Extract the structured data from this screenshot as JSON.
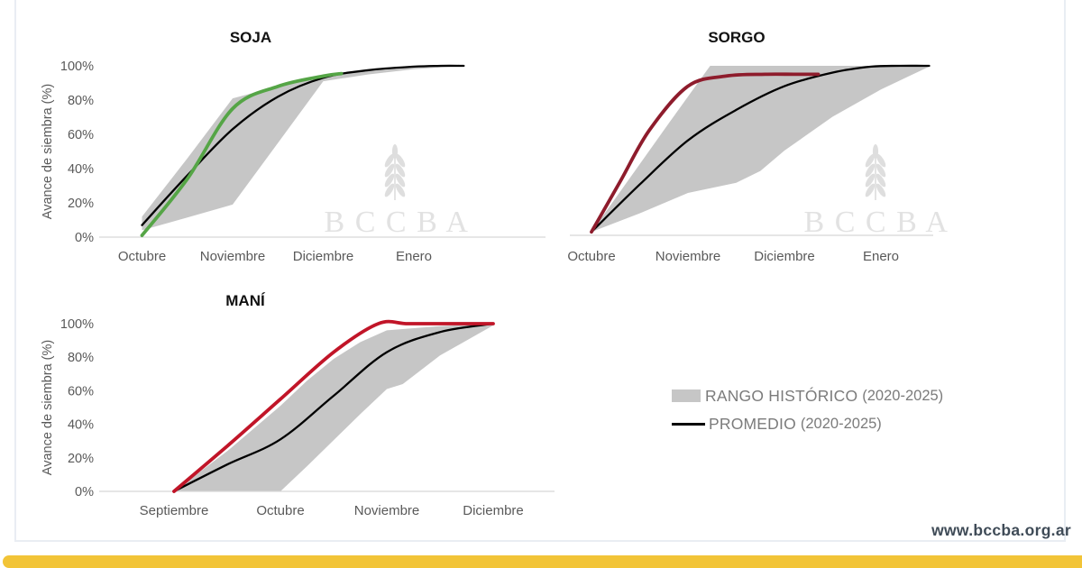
{
  "page": {
    "footer_url": "www.bccba.org.ar",
    "accent_yellow": "#f2c437",
    "watermark_text": "B C C B A"
  },
  "legend": {
    "range_label": "RANGO HISTÓRICO",
    "range_years": "(2020-2025)",
    "range_color": "#c6c6c6",
    "avg_label": "PROMEDIO",
    "avg_years": "(2020-2025)",
    "avg_color": "#000000"
  },
  "chart_data": [
    {
      "id": "soja",
      "type": "area",
      "title": "SOJA",
      "ylabel": "Avance de siembra (%)",
      "categories": [
        "Octubre",
        "Noviembre",
        "Diciembre",
        "Enero"
      ],
      "yticks": [
        "100%",
        "80%",
        "60%",
        "40%",
        "20%",
        "0%"
      ],
      "ylim": [
        0,
        100
      ],
      "band_color": "#c6c6c6",
      "avg_color": "#000000",
      "current_color": "#55a546",
      "series": [
        {
          "name": "RANGO HISTÓRICO (2020-2025)",
          "type": "band",
          "upper": [
            [
              0,
              12
            ],
            [
              0.5,
              46
            ],
            [
              1,
              81
            ],
            [
              1.5,
              88
            ],
            [
              2,
              94
            ],
            [
              2.5,
              97
            ],
            [
              3,
              99
            ],
            [
              3.55,
              100
            ]
          ],
          "lower": [
            [
              0,
              4
            ],
            [
              0.5,
              11.5
            ],
            [
              1,
              19
            ],
            [
              1.5,
              55
            ],
            [
              2,
              91
            ],
            [
              2.5,
              95
            ],
            [
              3,
              98
            ],
            [
              3.55,
              100
            ]
          ]
        },
        {
          "name": "PROMEDIO (2020-2025)",
          "type": "line",
          "points": [
            [
              0,
              7
            ],
            [
              0.5,
              36
            ],
            [
              1,
              63
            ],
            [
              1.5,
              82
            ],
            [
              2,
              93
            ],
            [
              2.5,
              97.5
            ],
            [
              3,
              99.5
            ],
            [
              3.3,
              100
            ],
            [
              3.55,
              100
            ]
          ]
        },
        {
          "role": "current",
          "type": "line",
          "points": [
            [
              0,
              1
            ],
            [
              0.5,
              34
            ],
            [
              1,
              75
            ],
            [
              1.5,
              88
            ],
            [
              2,
              94
            ],
            [
              2.2,
              95.5
            ]
          ]
        }
      ]
    },
    {
      "id": "sorgo",
      "type": "area",
      "title": "SORGO",
      "ylabel": "",
      "categories": [
        "Octubre",
        "Noviembre",
        "Diciembre",
        "Enero"
      ],
      "yticks": [],
      "ylim": [
        0,
        100
      ],
      "band_color": "#c6c6c6",
      "avg_color": "#000000",
      "current_color": "#8e1c2c",
      "series": [
        {
          "name": "RANGO HISTÓRICO (2020-2025)",
          "type": "band",
          "upper": [
            [
              0,
              2
            ],
            [
              0.4,
              34
            ],
            [
              0.8,
              66
            ],
            [
              1.23,
              100
            ],
            [
              2,
              100
            ],
            [
              3,
              100
            ],
            [
              3.5,
              100
            ]
          ],
          "lower": [
            [
              0,
              2
            ],
            [
              0.5,
              13
            ],
            [
              1,
              25
            ],
            [
              1.5,
              31
            ],
            [
              1.75,
              38
            ],
            [
              2,
              50
            ],
            [
              2.5,
              70
            ],
            [
              3,
              86
            ],
            [
              3.5,
              99.5
            ]
          ]
        },
        {
          "name": "PROMEDIO (2020-2025)",
          "type": "line",
          "points": [
            [
              0,
              2
            ],
            [
              0.5,
              30
            ],
            [
              1,
              56
            ],
            [
              1.5,
              74
            ],
            [
              2,
              88
            ],
            [
              2.5,
              96
            ],
            [
              2.9,
              99.5
            ],
            [
              3.2,
              100
            ],
            [
              3.5,
              100
            ]
          ]
        },
        {
          "role": "current",
          "type": "line",
          "points": [
            [
              0,
              2
            ],
            [
              0.3,
              32
            ],
            [
              0.6,
              62
            ],
            [
              1,
              88
            ],
            [
              1.4,
              94
            ],
            [
              1.8,
              95
            ],
            [
              2.1,
              95
            ],
            [
              2.35,
              95
            ]
          ]
        }
      ]
    },
    {
      "id": "mani",
      "type": "area",
      "title": "MANÍ",
      "ylabel": "Avance de siembra (%)",
      "categories": [
        "Septiembre",
        "Octubre",
        "Noviembre",
        "Diciembre"
      ],
      "yticks": [
        "100%",
        "80%",
        "60%",
        "40%",
        "20%",
        "0%"
      ],
      "ylim": [
        0,
        100
      ],
      "band_color": "#c6c6c6",
      "avg_color": "#000000",
      "current_color": "#c11528",
      "series": [
        {
          "name": "RANGO HISTÓRICO (2020-2025)",
          "type": "band",
          "upper": [
            [
              0,
              0
            ],
            [
              0.5,
              24
            ],
            [
              1,
              51
            ],
            [
              1.25,
              66
            ],
            [
              1.5,
              79
            ],
            [
              1.75,
              89
            ],
            [
              2,
              96
            ],
            [
              2.5,
              98.5
            ],
            [
              3,
              100
            ]
          ],
          "lower": [
            [
              0,
              0
            ],
            [
              1,
              0
            ],
            [
              1.25,
              15
            ],
            [
              1.5,
              30.5
            ],
            [
              1.75,
              46
            ],
            [
              2,
              61
            ],
            [
              2.15,
              64
            ],
            [
              2.5,
              81
            ],
            [
              3,
              99
            ]
          ]
        },
        {
          "name": "PROMEDIO (2020-2025)",
          "type": "line",
          "points": [
            [
              0,
              0
            ],
            [
              0.5,
              16
            ],
            [
              1,
              31
            ],
            [
              1.5,
              57
            ],
            [
              2,
              83
            ],
            [
              2.5,
              95
            ],
            [
              3,
              100
            ]
          ]
        },
        {
          "role": "current",
          "type": "line",
          "points": [
            [
              0,
              0
            ],
            [
              0.5,
              27
            ],
            [
              1,
              55
            ],
            [
              1.5,
              83
            ],
            [
              1.92,
              100
            ],
            [
              2.2,
              100
            ],
            [
              2.6,
              100
            ],
            [
              3,
              100
            ]
          ]
        }
      ]
    }
  ]
}
